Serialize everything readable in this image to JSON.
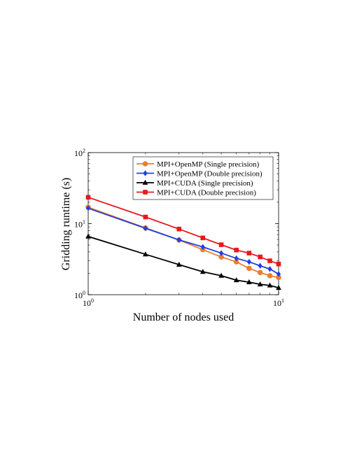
{
  "chart_data": {
    "type": "line",
    "title": "",
    "xlabel": "Number of nodes used",
    "ylabel": "Gridding runtime (s)",
    "xscale": "log",
    "yscale": "log",
    "xlim": [
      1,
      10
    ],
    "ylim": [
      1,
      100
    ],
    "x_ticks": [
      {
        "value": 1,
        "base": "10",
        "exp": "0"
      },
      {
        "value": 10,
        "base": "10",
        "exp": "1"
      }
    ],
    "y_ticks": [
      {
        "value": 1,
        "base": "10",
        "exp": "0"
      },
      {
        "value": 10,
        "base": "10",
        "exp": "1"
      },
      {
        "value": 100,
        "base": "10",
        "exp": "2"
      }
    ],
    "grid": false,
    "legend_position": "top-right",
    "x": [
      1,
      2,
      3,
      4,
      5,
      6,
      7,
      8,
      9,
      10
    ],
    "series": [
      {
        "name": "MPI+OpenMP (Single precision)",
        "color": "#ED7D31",
        "marker": "circle",
        "values": [
          17.0,
          8.7,
          5.9,
          4.3,
          3.4,
          2.9,
          2.35,
          2.05,
          1.85,
          1.75
        ]
      },
      {
        "name": "MPI+OpenMP (Double precision)",
        "color": "#1F3FE0",
        "marker": "diamond",
        "values": [
          16.5,
          8.6,
          5.9,
          4.7,
          3.85,
          3.25,
          2.9,
          2.55,
          2.3,
          1.95
        ]
      },
      {
        "name": "MPI+CUDA (Single precision)",
        "color": "#000000",
        "marker": "triangle",
        "values": [
          6.6,
          3.7,
          2.65,
          2.1,
          1.85,
          1.6,
          1.5,
          1.4,
          1.35,
          1.25
        ]
      },
      {
        "name": "MPI+CUDA (Double precision)",
        "color": "#E8191C",
        "marker": "square",
        "values": [
          23.5,
          12.4,
          8.4,
          6.3,
          5.05,
          4.25,
          3.85,
          3.4,
          3.0,
          2.7
        ]
      }
    ]
  }
}
